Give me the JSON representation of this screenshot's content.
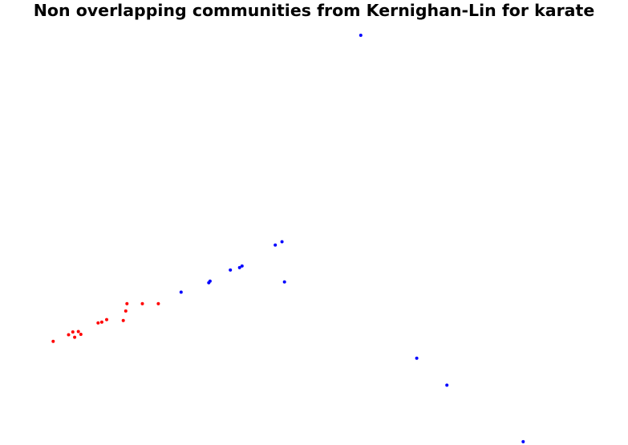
{
  "chart_data": {
    "type": "scatter",
    "title": "Non overlapping communities from Kernighan-Lin for karate",
    "xlabel": "",
    "ylabel": "",
    "xlim": [
      0,
      100
    ],
    "ylim": [
      0,
      100
    ],
    "axes_visible": false,
    "grid": false,
    "legend": "none",
    "series": [
      {
        "color": "#ff0000",
        "points": [
          {
            "x": 7.6,
            "y": 25.3
          },
          {
            "x": 10.1,
            "y": 26.9
          },
          {
            "x": 10.8,
            "y": 27.6
          },
          {
            "x": 11.1,
            "y": 26.3
          },
          {
            "x": 11.7,
            "y": 27.7
          },
          {
            "x": 12.1,
            "y": 27.0
          },
          {
            "x": 14.9,
            "y": 29.8
          },
          {
            "x": 15.5,
            "y": 30.0
          },
          {
            "x": 16.3,
            "y": 30.6
          },
          {
            "x": 19.0,
            "y": 30.4
          },
          {
            "x": 19.4,
            "y": 32.7
          },
          {
            "x": 19.6,
            "y": 34.5
          },
          {
            "x": 22.1,
            "y": 34.5
          },
          {
            "x": 24.7,
            "y": 34.5
          }
        ]
      },
      {
        "color": "#0000ff",
        "points": [
          {
            "x": 28.4,
            "y": 37.3
          },
          {
            "x": 32.9,
            "y": 39.6
          },
          {
            "x": 33.1,
            "y": 40.0
          },
          {
            "x": 36.4,
            "y": 42.7
          },
          {
            "x": 37.9,
            "y": 43.3
          },
          {
            "x": 38.3,
            "y": 43.7
          },
          {
            "x": 43.7,
            "y": 48.8
          },
          {
            "x": 44.8,
            "y": 49.6
          },
          {
            "x": 45.2,
            "y": 39.8
          },
          {
            "x": 57.6,
            "y": 100.0
          },
          {
            "x": 66.7,
            "y": 21.2
          },
          {
            "x": 71.6,
            "y": 14.6
          },
          {
            "x": 84.0,
            "y": 0.8
          }
        ]
      }
    ]
  }
}
